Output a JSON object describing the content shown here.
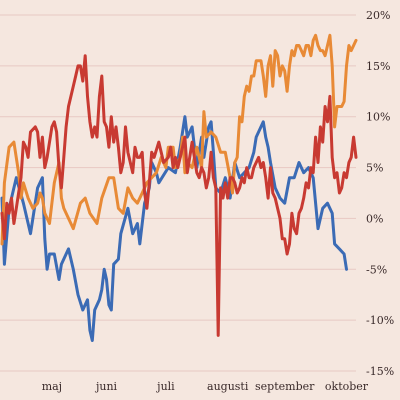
{
  "chart_data": {
    "type": "line",
    "title": "",
    "xlabel": "",
    "ylabel": "",
    "ylim": [
      -15,
      20
    ],
    "y_ticks": [
      20,
      15,
      10,
      5,
      0,
      -5,
      -10,
      -15
    ],
    "y_tick_labels": [
      "20%",
      "15%",
      "10%",
      "5%",
      "0%",
      "-5%",
      "-10%",
      "-15%"
    ],
    "y_axis_side": "right",
    "grid": "horizontal",
    "legend": "none",
    "x_tick_labels": [
      "maj",
      "juni",
      "juli",
      "augusti",
      "september",
      "oktober"
    ],
    "x_tick_index": [
      21,
      44,
      69,
      95,
      119,
      145
    ],
    "x_count": 150,
    "colors": {
      "background": "#f5e7df",
      "grid": "#e8c9c3",
      "series_1": "#3b6bb5",
      "series_2": "#e88a36",
      "series_3": "#c83a32"
    },
    "series": [
      {
        "color": "#3b6bb5",
        "points": [
          [
            0,
            2
          ],
          [
            1,
            -4.5
          ],
          [
            3,
            1
          ],
          [
            6,
            4
          ],
          [
            9,
            1.5
          ],
          [
            12,
            -1.5
          ],
          [
            15,
            3
          ],
          [
            17,
            4
          ],
          [
            18,
            -2
          ],
          [
            19,
            -5
          ],
          [
            20,
            -3.5
          ],
          [
            22,
            -3.5
          ],
          [
            24,
            -6
          ],
          [
            25,
            -4.5
          ],
          [
            28,
            -3
          ],
          [
            30,
            -5
          ],
          [
            32,
            -7.5
          ],
          [
            34,
            -9
          ],
          [
            36,
            -8
          ],
          [
            37,
            -11
          ],
          [
            38,
            -12
          ],
          [
            39,
            -9
          ],
          [
            41,
            -8
          ],
          [
            42,
            -7
          ],
          [
            43,
            -5
          ],
          [
            44,
            -6
          ],
          [
            45,
            -8.5
          ],
          [
            46,
            -9
          ],
          [
            47,
            -4.5
          ],
          [
            49,
            -4
          ],
          [
            50,
            -1.5
          ],
          [
            53,
            1
          ],
          [
            55,
            -1.5
          ],
          [
            57,
            -0.5
          ],
          [
            58,
            -2.5
          ],
          [
            60,
            1.5
          ],
          [
            62,
            3
          ],
          [
            63,
            5.5
          ],
          [
            65,
            4.5
          ],
          [
            66,
            3.5
          ],
          [
            70,
            5
          ],
          [
            73,
            4.5
          ],
          [
            75,
            7
          ],
          [
            77,
            10
          ],
          [
            78,
            8
          ],
          [
            80,
            9
          ],
          [
            82,
            5
          ],
          [
            84,
            8
          ],
          [
            85,
            6
          ],
          [
            87,
            9
          ],
          [
            88,
            9.5
          ],
          [
            89,
            6.5
          ],
          [
            90,
            3
          ],
          [
            92,
            2.5
          ],
          [
            94,
            4
          ],
          [
            96,
            2
          ],
          [
            98,
            5.5
          ],
          [
            100,
            4
          ],
          [
            102,
            4.5
          ],
          [
            104,
            5
          ],
          [
            106,
            6.5
          ],
          [
            107,
            8
          ],
          [
            110,
            9.5
          ],
          [
            111,
            8
          ],
          [
            112,
            7
          ],
          [
            113,
            5.5
          ],
          [
            115,
            3
          ],
          [
            117,
            2
          ],
          [
            119,
            1.5
          ],
          [
            121,
            4
          ],
          [
            123,
            4
          ],
          [
            125,
            5.5
          ],
          [
            127,
            4.5
          ],
          [
            129,
            5
          ],
          [
            131,
            4
          ],
          [
            133,
            -1
          ],
          [
            135,
            1
          ],
          [
            137,
            1.5
          ],
          [
            139,
            0.5
          ],
          [
            140,
            -2.5
          ],
          [
            142,
            -3
          ],
          [
            144,
            -3.5
          ],
          [
            145,
            -5
          ]
        ]
      },
      {
        "color": "#e88a36",
        "points": [
          [
            0,
            -2.5
          ],
          [
            1,
            3.5
          ],
          [
            3,
            7
          ],
          [
            5,
            7.5
          ],
          [
            7,
            4.5
          ],
          [
            8,
            2
          ],
          [
            9,
            3.5
          ],
          [
            11,
            2
          ],
          [
            13,
            1
          ],
          [
            15,
            1.5
          ],
          [
            16,
            2.5
          ],
          [
            17,
            2
          ],
          [
            18,
            0.5
          ],
          [
            20,
            -0.5
          ],
          [
            22,
            3.5
          ],
          [
            24,
            5.5
          ],
          [
            25,
            2
          ],
          [
            26,
            1
          ],
          [
            28,
            0
          ],
          [
            30,
            -1
          ],
          [
            33,
            1.5
          ],
          [
            35,
            2
          ],
          [
            37,
            0.5
          ],
          [
            40,
            -0.5
          ],
          [
            42,
            2
          ],
          [
            45,
            4
          ],
          [
            47,
            4
          ],
          [
            49,
            1
          ],
          [
            51,
            0.5
          ],
          [
            53,
            3
          ],
          [
            55,
            2
          ],
          [
            57,
            1.5
          ],
          [
            59,
            2.5
          ],
          [
            61,
            3.5
          ],
          [
            63,
            4
          ],
          [
            65,
            4.5
          ],
          [
            67,
            6
          ],
          [
            69,
            5
          ],
          [
            70,
            7
          ],
          [
            72,
            7
          ],
          [
            73,
            5
          ],
          [
            75,
            6
          ],
          [
            76,
            8
          ],
          [
            77,
            4.5
          ],
          [
            78,
            5.5
          ],
          [
            80,
            5
          ],
          [
            82,
            7
          ],
          [
            84,
            5
          ],
          [
            85,
            10.5
          ],
          [
            86,
            8
          ],
          [
            88,
            8.5
          ],
          [
            90,
            8
          ],
          [
            92,
            6.5
          ],
          [
            94,
            6.5
          ],
          [
            96,
            4
          ],
          [
            97,
            2.5
          ],
          [
            98,
            5.5
          ],
          [
            99,
            6
          ],
          [
            100,
            10
          ],
          [
            101,
            9.5
          ],
          [
            102,
            12
          ],
          [
            103,
            13
          ],
          [
            104,
            12.5
          ],
          [
            105,
            14
          ],
          [
            106,
            14
          ],
          [
            107,
            15.5
          ],
          [
            109,
            15.5
          ],
          [
            110,
            14
          ],
          [
            111,
            12
          ],
          [
            112,
            15
          ],
          [
            113,
            16
          ],
          [
            114,
            13
          ],
          [
            115,
            16.5
          ],
          [
            116,
            16
          ],
          [
            117,
            14
          ],
          [
            118,
            15
          ],
          [
            119,
            14.5
          ],
          [
            120,
            12.5
          ],
          [
            121,
            15
          ],
          [
            122,
            16.5
          ],
          [
            123,
            16
          ],
          [
            124,
            17
          ],
          [
            125,
            17
          ],
          [
            126,
            16.5
          ],
          [
            127,
            16
          ],
          [
            128,
            17
          ],
          [
            129,
            17
          ],
          [
            130,
            16
          ],
          [
            131,
            17.5
          ],
          [
            132,
            18
          ],
          [
            133,
            17
          ],
          [
            134,
            16.5
          ],
          [
            135,
            16.5
          ],
          [
            136,
            16
          ],
          [
            137,
            17
          ],
          [
            138,
            18
          ],
          [
            139,
            15
          ],
          [
            140,
            9
          ],
          [
            141,
            11
          ],
          [
            142,
            11
          ],
          [
            143,
            11
          ],
          [
            144,
            11.5
          ],
          [
            145,
            15
          ],
          [
            146,
            17
          ],
          [
            147,
            16.5
          ],
          [
            148,
            17
          ],
          [
            149,
            17.5
          ]
        ]
      },
      {
        "color": "#c83a32",
        "points": [
          [
            0,
            0.5
          ],
          [
            1,
            -2
          ],
          [
            2,
            1.5
          ],
          [
            3,
            0.5
          ],
          [
            4,
            2
          ],
          [
            5,
            -0.5
          ],
          [
            6,
            1
          ],
          [
            7,
            2.5
          ],
          [
            8,
            4
          ],
          [
            9,
            7.5
          ],
          [
            10,
            7
          ],
          [
            11,
            6
          ],
          [
            12,
            8.5
          ],
          [
            14,
            9
          ],
          [
            15,
            8.5
          ],
          [
            16,
            6
          ],
          [
            17,
            8
          ],
          [
            18,
            5
          ],
          [
            19,
            6
          ],
          [
            21,
            9
          ],
          [
            22,
            9.5
          ],
          [
            23,
            8.5
          ],
          [
            24,
            5
          ],
          [
            25,
            3
          ],
          [
            26,
            6
          ],
          [
            27,
            9
          ],
          [
            28,
            11
          ],
          [
            29,
            12
          ],
          [
            30,
            13
          ],
          [
            31,
            14
          ],
          [
            32,
            15
          ],
          [
            33,
            15
          ],
          [
            34,
            13.5
          ],
          [
            35,
            16
          ],
          [
            36,
            12
          ],
          [
            37,
            9.5
          ],
          [
            38,
            8
          ],
          [
            39,
            9
          ],
          [
            40,
            8
          ],
          [
            41,
            12
          ],
          [
            42,
            14
          ],
          [
            43,
            9.5
          ],
          [
            44,
            9
          ],
          [
            45,
            7
          ],
          [
            46,
            10
          ],
          [
            47,
            7.5
          ],
          [
            48,
            9
          ],
          [
            49,
            7
          ],
          [
            50,
            4.5
          ],
          [
            51,
            5.5
          ],
          [
            52,
            9
          ],
          [
            53,
            6.5
          ],
          [
            55,
            4.5
          ],
          [
            56,
            7
          ],
          [
            57,
            6
          ],
          [
            58,
            6
          ],
          [
            59,
            6.5
          ],
          [
            60,
            2.5
          ],
          [
            61,
            1
          ],
          [
            62,
            3.5
          ],
          [
            63,
            6.5
          ],
          [
            64,
            6
          ],
          [
            66,
            7.5
          ],
          [
            68,
            5.5
          ],
          [
            70,
            6
          ],
          [
            71,
            7
          ],
          [
            72,
            5
          ],
          [
            73,
            6
          ],
          [
            74,
            5
          ],
          [
            75,
            6
          ],
          [
            77,
            8
          ],
          [
            78,
            4.5
          ],
          [
            79,
            6
          ],
          [
            80,
            7.5
          ],
          [
            81,
            6
          ],
          [
            82,
            4.5
          ],
          [
            83,
            4
          ],
          [
            84,
            5
          ],
          [
            85,
            4.5
          ],
          [
            86,
            3
          ],
          [
            87,
            4
          ],
          [
            88,
            6.5
          ],
          [
            89,
            4
          ],
          [
            90,
            3
          ],
          [
            91,
            -11.5
          ],
          [
            92,
            3
          ],
          [
            93,
            2
          ],
          [
            94,
            3.5
          ],
          [
            95,
            2
          ],
          [
            96,
            4
          ],
          [
            97,
            4
          ],
          [
            98,
            3.5
          ],
          [
            99,
            2.5
          ],
          [
            100,
            3
          ],
          [
            101,
            4
          ],
          [
            102,
            3.5
          ],
          [
            103,
            5
          ],
          [
            104,
            4
          ],
          [
            105,
            4
          ],
          [
            106,
            5
          ],
          [
            107,
            5.5
          ],
          [
            108,
            6
          ],
          [
            109,
            5
          ],
          [
            110,
            5.5
          ],
          [
            111,
            4
          ],
          [
            112,
            2
          ],
          [
            113,
            5
          ],
          [
            114,
            2.5
          ],
          [
            115,
            2
          ],
          [
            116,
            1
          ],
          [
            117,
            0
          ],
          [
            118,
            -2
          ],
          [
            119,
            -2
          ],
          [
            120,
            -3.5
          ],
          [
            121,
            -2.5
          ],
          [
            122,
            0.5
          ],
          [
            123,
            -1
          ],
          [
            124,
            -1.5
          ],
          [
            125,
            0.5
          ],
          [
            126,
            1
          ],
          [
            127,
            2
          ],
          [
            128,
            3.5
          ],
          [
            129,
            3
          ],
          [
            130,
            5
          ],
          [
            131,
            4.5
          ],
          [
            132,
            8
          ],
          [
            133,
            5.5
          ],
          [
            134,
            9
          ],
          [
            135,
            7.5
          ],
          [
            136,
            11
          ],
          [
            137,
            9.5
          ],
          [
            138,
            12
          ],
          [
            139,
            6
          ],
          [
            140,
            4
          ],
          [
            141,
            4.5
          ],
          [
            142,
            2.5
          ],
          [
            143,
            3
          ],
          [
            144,
            4.5
          ],
          [
            145,
            4
          ],
          [
            146,
            5.5
          ],
          [
            147,
            6
          ],
          [
            148,
            8
          ],
          [
            149,
            6
          ]
        ]
      }
    ]
  }
}
